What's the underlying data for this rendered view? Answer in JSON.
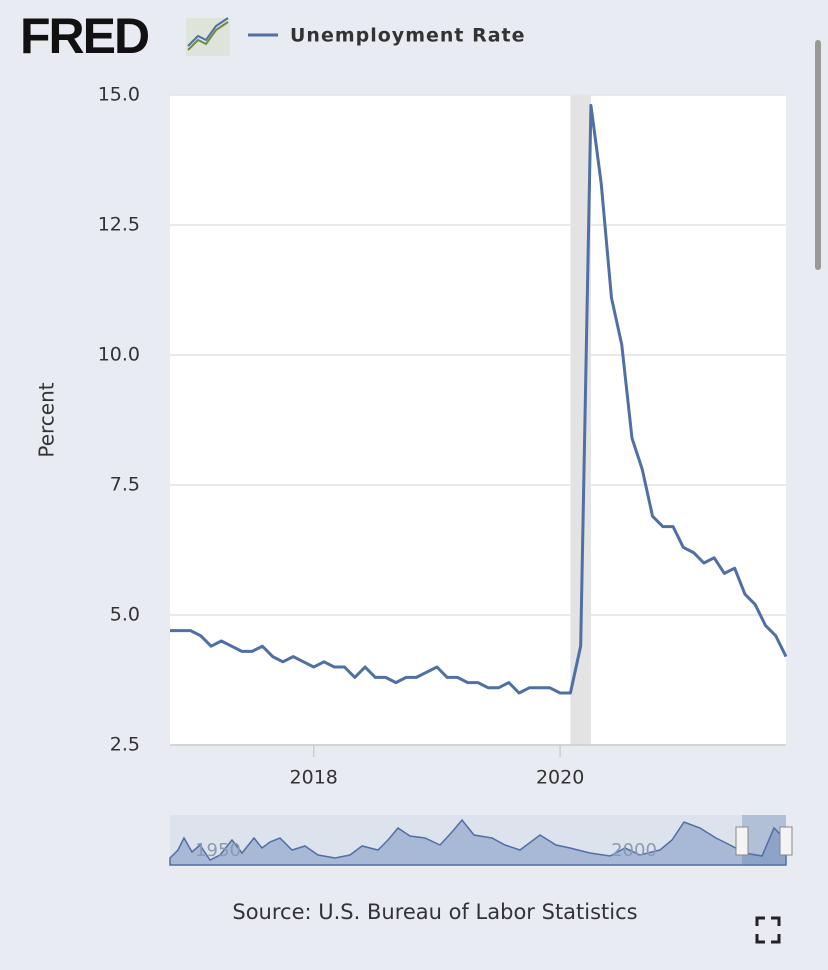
{
  "logo": "FRED",
  "chart_data": {
    "type": "line",
    "ylabel": "Percent",
    "source": "Source: U.S. Bureau of Labor Statistics",
    "x": [
      "2016-11",
      "2016-12",
      "2017-01",
      "2017-02",
      "2017-03",
      "2017-04",
      "2017-05",
      "2017-06",
      "2017-07",
      "2017-08",
      "2017-09",
      "2017-10",
      "2017-11",
      "2017-12",
      "2018-01",
      "2018-02",
      "2018-03",
      "2018-04",
      "2018-05",
      "2018-06",
      "2018-07",
      "2018-08",
      "2018-09",
      "2018-10",
      "2018-11",
      "2018-12",
      "2019-01",
      "2019-02",
      "2019-03",
      "2019-04",
      "2019-05",
      "2019-06",
      "2019-07",
      "2019-08",
      "2019-09",
      "2019-10",
      "2019-11",
      "2019-12",
      "2020-01",
      "2020-02",
      "2020-03",
      "2020-04",
      "2020-05",
      "2020-06",
      "2020-07",
      "2020-08",
      "2020-09",
      "2020-10",
      "2020-11",
      "2020-12",
      "2021-01",
      "2021-02",
      "2021-03",
      "2021-04",
      "2021-05",
      "2021-06",
      "2021-07",
      "2021-08",
      "2021-09",
      "2021-10",
      "2021-11"
    ],
    "series": [
      {
        "name": "Unemployment Rate",
        "color": "#4f6fa5",
        "values": [
          4.7,
          4.7,
          4.7,
          4.6,
          4.4,
          4.5,
          4.4,
          4.3,
          4.3,
          4.4,
          4.2,
          4.1,
          4.2,
          4.1,
          4.0,
          4.1,
          4.0,
          4.0,
          3.8,
          4.0,
          3.8,
          3.8,
          3.7,
          3.8,
          3.8,
          3.9,
          4.0,
          3.8,
          3.8,
          3.7,
          3.7,
          3.6,
          3.6,
          3.7,
          3.5,
          3.6,
          3.6,
          3.6,
          3.5,
          3.5,
          4.4,
          14.8,
          13.3,
          11.1,
          10.2,
          8.4,
          7.8,
          6.9,
          6.7,
          6.7,
          6.3,
          6.2,
          6.0,
          6.1,
          5.8,
          5.9,
          5.4,
          5.2,
          4.8,
          4.6,
          4.2
        ]
      }
    ],
    "xlim": [
      "2016-11",
      "2021-11"
    ],
    "xticks": [
      {
        "value": "2018-01",
        "label": "2018"
      },
      {
        "value": "2020-01",
        "label": "2020"
      }
    ],
    "ylim": [
      2.5,
      15
    ],
    "yticks": [
      {
        "value": 2.5,
        "label": "2.5"
      },
      {
        "value": 5,
        "label": "5.0"
      },
      7.5,
      {
        "value": 10,
        "label": "10.0"
      },
      12.5,
      {
        "value": 15,
        "label": "15.0"
      }
    ],
    "grid": true,
    "recessions": [
      {
        "start": "2020-02",
        "end": "2020-04"
      }
    ],
    "navigator": {
      "labels": [
        "1950",
        "2000"
      ]
    }
  }
}
